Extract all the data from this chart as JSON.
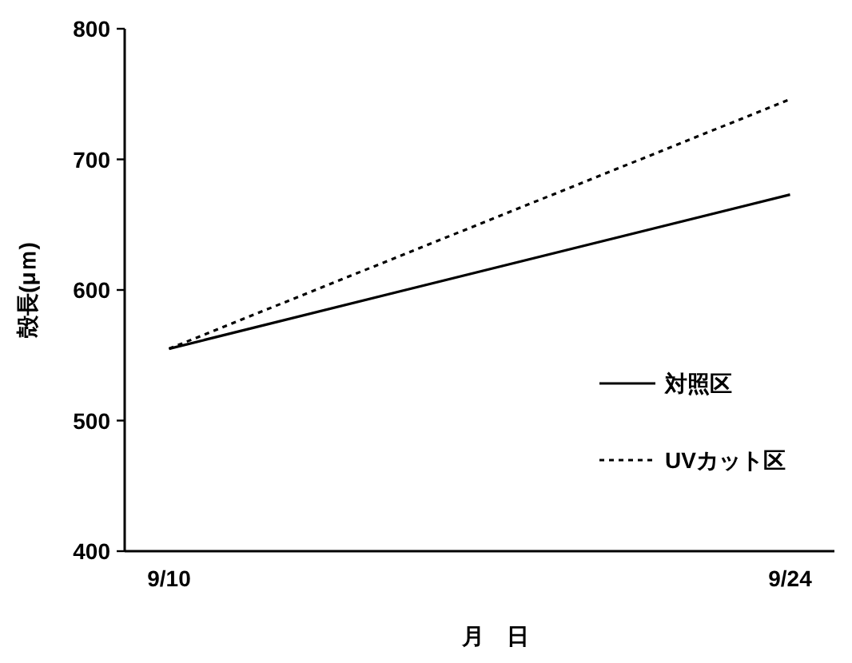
{
  "chart_data": {
    "type": "line",
    "x": [
      "--09-10",
      "--09-24"
    ],
    "series": [
      {
        "name": "対照区",
        "color": "#000000",
        "values": [
          555,
          673
        ],
        "line_style": "solid"
      },
      {
        "name": "UVカット区",
        "color": "#000000",
        "values": [
          555,
          746
        ],
        "line_style": "dotted"
      }
    ],
    "xlim": [
      "--09-09",
      "--09-25"
    ],
    "xticks": [
      {
        "value": "--09-10",
        "label": "9/10"
      },
      {
        "value": "--09-24",
        "label": "9/24"
      }
    ],
    "ylim": [
      400,
      800
    ],
    "yticks": [
      400,
      500,
      600,
      700,
      800
    ],
    "xlabel": "月　日",
    "ylabel": "殻長(μｍ)",
    "legend": "right"
  }
}
